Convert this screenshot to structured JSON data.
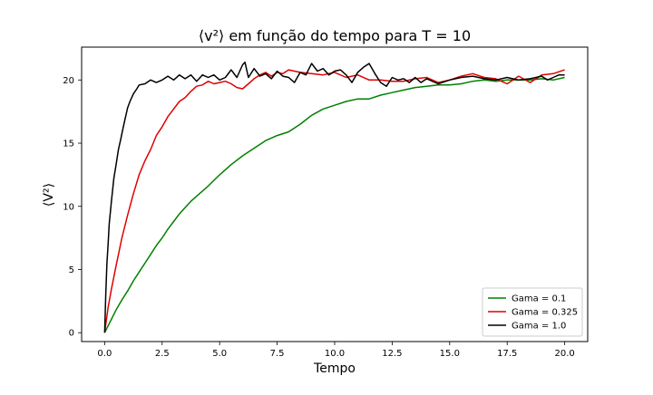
{
  "chart_data": {
    "type": "line",
    "title": "⟨v²⟩ em função do tempo para T = 10",
    "xlabel": "Tempo",
    "ylabel": "⟨V²⟩",
    "xlim": [
      -1.0,
      21.0
    ],
    "ylim": [
      -0.7,
      22.6
    ],
    "xticks": [
      0.0,
      2.5,
      5.0,
      7.5,
      10.0,
      12.5,
      15.0,
      17.5,
      20.0
    ],
    "xtick_labels": [
      "0.0",
      "2.5",
      "5.0",
      "7.5",
      "10.0",
      "12.5",
      "15.0",
      "17.5",
      "20.0"
    ],
    "yticks": [
      0,
      5,
      10,
      15,
      20
    ],
    "ytick_labels": [
      "0",
      "5",
      "10",
      "15",
      "20"
    ],
    "grid": false,
    "legend_position": "lower-right",
    "series": [
      {
        "name": "Gama = 0.1",
        "color": "#008000",
        "x": [
          0,
          0.25,
          0.5,
          0.75,
          1.0,
          1.25,
          1.5,
          1.75,
          2.0,
          2.25,
          2.5,
          2.75,
          3.0,
          3.25,
          3.5,
          3.75,
          4.0,
          4.5,
          5.0,
          5.5,
          6.0,
          6.5,
          7.0,
          7.5,
          8.0,
          8.5,
          9.0,
          9.5,
          10.0,
          10.5,
          11.0,
          11.5,
          12.0,
          12.5,
          13.0,
          13.5,
          14.0,
          14.5,
          15.0,
          15.5,
          16.0,
          16.5,
          17.0,
          17.5,
          18.0,
          18.5,
          19.0,
          19.5,
          20.0
        ],
        "values": [
          0,
          0.9,
          1.8,
          2.6,
          3.3,
          4.1,
          4.8,
          5.5,
          6.2,
          6.9,
          7.5,
          8.2,
          8.8,
          9.4,
          9.9,
          10.4,
          10.8,
          11.6,
          12.5,
          13.3,
          14.0,
          14.6,
          15.2,
          15.6,
          15.9,
          16.5,
          17.2,
          17.7,
          18.0,
          18.3,
          18.5,
          18.5,
          18.8,
          19.0,
          19.2,
          19.4,
          19.5,
          19.6,
          19.6,
          19.7,
          19.9,
          20.0,
          19.9,
          20.0,
          20.0,
          20.0,
          20.1,
          20.0,
          20.2
        ]
      },
      {
        "name": "Gama = 0.325",
        "color": "#e00000",
        "x": [
          0,
          0.15,
          0.3,
          0.5,
          0.75,
          1.0,
          1.25,
          1.5,
          1.75,
          2.0,
          2.25,
          2.5,
          2.75,
          3.0,
          3.25,
          3.5,
          3.75,
          4.0,
          4.25,
          4.5,
          4.75,
          5.0,
          5.25,
          5.5,
          5.75,
          6.0,
          6.25,
          6.5,
          6.75,
          7.0,
          7.25,
          7.5,
          7.75,
          8.0,
          8.5,
          9.0,
          9.5,
          10.0,
          10.5,
          11.0,
          11.5,
          12.0,
          12.5,
          13.0,
          13.5,
          14.0,
          14.5,
          15.0,
          15.5,
          16.0,
          16.5,
          17.0,
          17.5,
          18.0,
          18.5,
          19.0,
          19.5,
          20.0
        ],
        "values": [
          0,
          2.0,
          3.5,
          5.3,
          7.5,
          9.3,
          11.0,
          12.5,
          13.6,
          14.5,
          15.6,
          16.3,
          17.1,
          17.7,
          18.3,
          18.6,
          19.1,
          19.5,
          19.6,
          19.9,
          19.7,
          19.8,
          19.9,
          19.7,
          19.4,
          19.3,
          19.7,
          20.1,
          20.4,
          20.6,
          20.3,
          20.6,
          20.5,
          20.8,
          20.6,
          20.5,
          20.4,
          20.6,
          20.2,
          20.4,
          20.0,
          20.0,
          19.9,
          19.9,
          20.1,
          20.2,
          19.8,
          20.0,
          20.3,
          20.5,
          20.2,
          20.1,
          19.7,
          20.3,
          19.8,
          20.4,
          20.5,
          20.8
        ]
      },
      {
        "name": "Gama = 1.0",
        "color": "#000000",
        "x": [
          0,
          0.05,
          0.1,
          0.15,
          0.2,
          0.3,
          0.4,
          0.5,
          0.6,
          0.7,
          0.8,
          0.9,
          1.0,
          1.1,
          1.25,
          1.4,
          1.5,
          1.75,
          2.0,
          2.25,
          2.5,
          2.75,
          3.0,
          3.25,
          3.5,
          3.75,
          4.0,
          4.25,
          4.5,
          4.75,
          5.0,
          5.25,
          5.5,
          5.75,
          6.0,
          6.1,
          6.25,
          6.5,
          6.75,
          7.0,
          7.25,
          7.5,
          7.75,
          8.0,
          8.25,
          8.5,
          8.75,
          9.0,
          9.25,
          9.5,
          9.75,
          10.0,
          10.25,
          10.5,
          10.75,
          11.0,
          11.25,
          11.5,
          11.75,
          12.0,
          12.25,
          12.5,
          12.75,
          13.0,
          13.25,
          13.5,
          13.75,
          14.0,
          14.5,
          15.0,
          15.5,
          16.0,
          16.5,
          17.0,
          17.5,
          18.0,
          18.5,
          19.0,
          19.25,
          19.5,
          19.75,
          20.0
        ],
        "values": [
          0,
          3.0,
          5.5,
          7.0,
          8.6,
          10.5,
          12.2,
          13.3,
          14.5,
          15.3,
          16.2,
          17.0,
          17.8,
          18.3,
          18.9,
          19.3,
          19.6,
          19.7,
          20.0,
          19.8,
          20.0,
          20.3,
          20.0,
          20.4,
          20.1,
          20.4,
          19.9,
          20.4,
          20.2,
          20.4,
          20.0,
          20.2,
          20.8,
          20.2,
          21.2,
          21.4,
          20.2,
          20.9,
          20.3,
          20.5,
          20.1,
          20.7,
          20.3,
          20.2,
          19.8,
          20.6,
          20.4,
          21.3,
          20.7,
          20.9,
          20.4,
          20.7,
          20.8,
          20.4,
          19.8,
          20.6,
          21.0,
          21.3,
          20.5,
          19.8,
          19.5,
          20.2,
          20.0,
          20.1,
          19.8,
          20.2,
          19.8,
          20.1,
          19.7,
          20.0,
          20.2,
          20.3,
          20.1,
          20.0,
          20.2,
          20.0,
          20.1,
          20.3,
          20.0,
          20.2,
          20.4,
          20.4
        ]
      }
    ]
  }
}
